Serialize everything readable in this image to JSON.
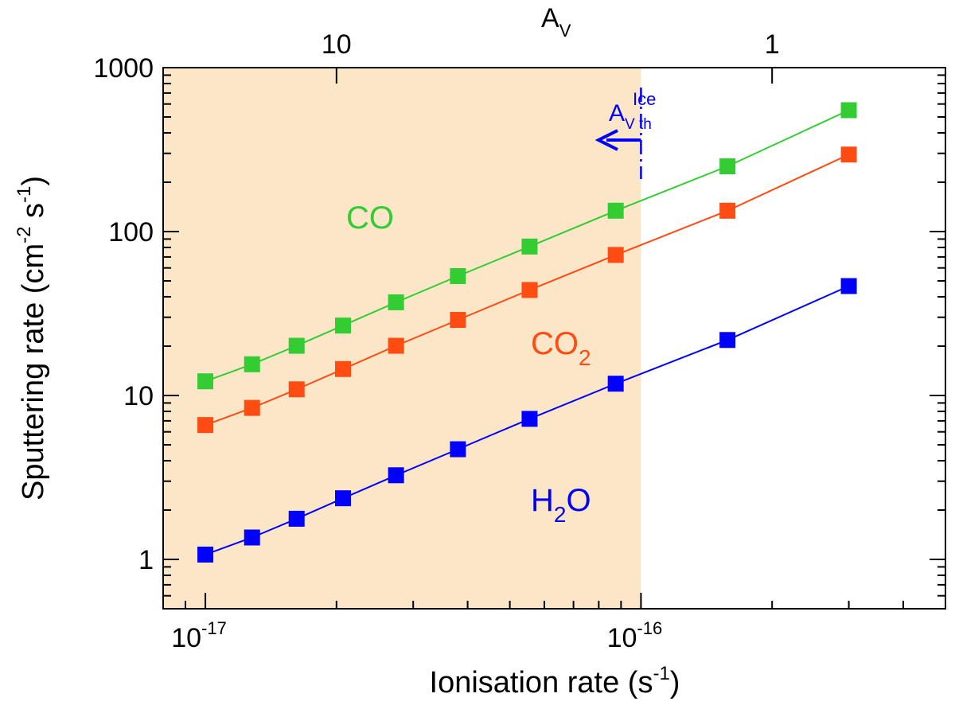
{
  "chart_data": {
    "type": "scatter",
    "xscale": "log",
    "yscale": "log",
    "xlabel": "Ionisation rate (s",
    "xlabel_sup": "-1",
    "xlabel_close": ")",
    "ylabel_parts": [
      "Sputtering rate (cm",
      "-2",
      " s",
      "-1",
      ")"
    ],
    "xlim": [
      8e-18,
      5e-16
    ],
    "ylim": [
      0.5,
      1000
    ],
    "x_ticks": [
      {
        "value": 1e-17,
        "base": "10",
        "exp": "-17"
      },
      {
        "value": 1e-16,
        "base": "10",
        "exp": "-16"
      }
    ],
    "y_ticks": [
      {
        "value": 1,
        "label": "1"
      },
      {
        "value": 10,
        "label": "10"
      },
      {
        "value": 100,
        "label": "100"
      },
      {
        "value": 1000,
        "label": "1000"
      }
    ],
    "top_axis": {
      "label_main": "A",
      "label_sub": "V",
      "ticks": [
        {
          "x_value": 2e-17,
          "label": "10"
        },
        {
          "x_value": 2e-16,
          "label": "1"
        }
      ]
    },
    "shaded_region": {
      "x_from": 8e-18,
      "x_to": 1e-16,
      "color": "#fbe6c8"
    },
    "threshold": {
      "x": 1e-16,
      "label_main": "A",
      "label_sub": "V th",
      "label_sup": "Ice",
      "color": "#0000ff"
    },
    "x": [
      1e-17,
      1.28e-17,
      1.62e-17,
      2.07e-17,
      2.74e-17,
      3.8e-17,
      5.55e-17,
      8.75e-17,
      1.58e-16,
      3e-16
    ],
    "series": [
      {
        "name": "CO",
        "label_sub": "",
        "label_tail": "",
        "color": "#33cc33",
        "values": [
          12.2,
          15.5,
          20.1,
          26.7,
          37.0,
          53.5,
          81.0,
          134.0,
          250.0,
          550.0
        ]
      },
      {
        "name": "CO",
        "label_sub": "2",
        "label_tail": "",
        "color": "#ff4c12",
        "values": [
          6.6,
          8.4,
          10.9,
          14.5,
          20.1,
          28.9,
          44.0,
          72.0,
          134.0,
          295.0
        ]
      },
      {
        "name": "H",
        "label_sub": "2",
        "label_tail": "O",
        "color": "#0000ff",
        "values": [
          1.07,
          1.36,
          1.77,
          2.36,
          3.26,
          4.7,
          7.2,
          11.8,
          21.8,
          46.5
        ]
      }
    ]
  }
}
